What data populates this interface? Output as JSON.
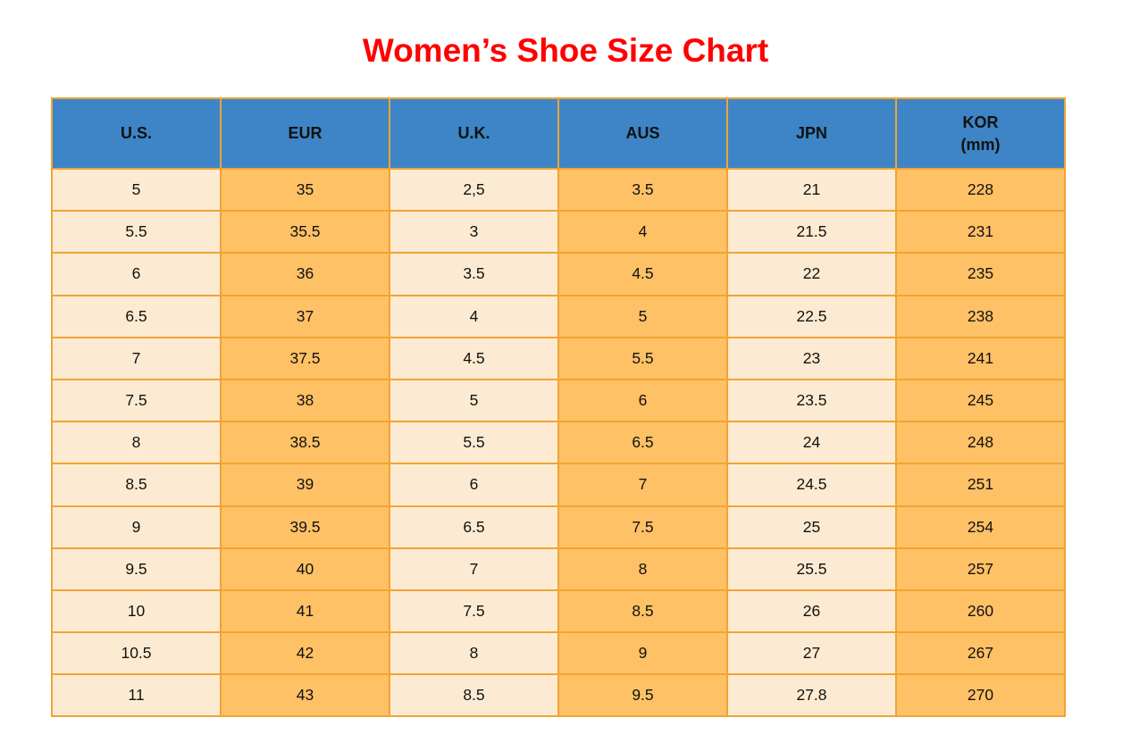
{
  "title": "Women’s Shoe Size Chart",
  "columns": [
    {
      "label": "U.S.",
      "sub": ""
    },
    {
      "label": "EUR",
      "sub": ""
    },
    {
      "label": "U.K.",
      "sub": ""
    },
    {
      "label": "AUS",
      "sub": ""
    },
    {
      "label": "JPN",
      "sub": ""
    },
    {
      "label": "KOR",
      "sub": "(mm)"
    }
  ],
  "colors": {
    "title_red": "#ff0000",
    "header_blue": "#3d85c6",
    "cell_light": "#fcebd2",
    "cell_dark": "#ffc166",
    "grid_orange": "#f0a434",
    "text_dark": "#111111"
  },
  "chart_data": {
    "type": "table",
    "title": "Women’s Shoe Size Chart",
    "columns": [
      "U.S.",
      "EUR",
      "U.K.",
      "AUS",
      "JPN",
      "KOR (mm)"
    ],
    "rows": [
      [
        "5",
        "35",
        "2,5",
        "3.5",
        "21",
        "228"
      ],
      [
        "5.5",
        "35.5",
        "3",
        "4",
        "21.5",
        "231"
      ],
      [
        "6",
        "36",
        "3.5",
        "4.5",
        "22",
        "235"
      ],
      [
        "6.5",
        "37",
        "4",
        "5",
        "22.5",
        "238"
      ],
      [
        "7",
        "37.5",
        "4.5",
        "5.5",
        "23",
        "241"
      ],
      [
        "7.5",
        "38",
        "5",
        "6",
        "23.5",
        "245"
      ],
      [
        "8",
        "38.5",
        "5.5",
        "6.5",
        "24",
        "248"
      ],
      [
        "8.5",
        "39",
        "6",
        "7",
        "24.5",
        "251"
      ],
      [
        "9",
        "39.5",
        "6.5",
        "7.5",
        "25",
        "254"
      ],
      [
        "9.5",
        "40",
        "7",
        "8",
        "25.5",
        "257"
      ],
      [
        "10",
        "41",
        "7.5",
        "8.5",
        "26",
        "260"
      ],
      [
        "10.5",
        "42",
        "8",
        "9",
        "27",
        "267"
      ],
      [
        "11",
        "43",
        "8.5",
        "9.5",
        "27.8",
        "270"
      ]
    ]
  }
}
